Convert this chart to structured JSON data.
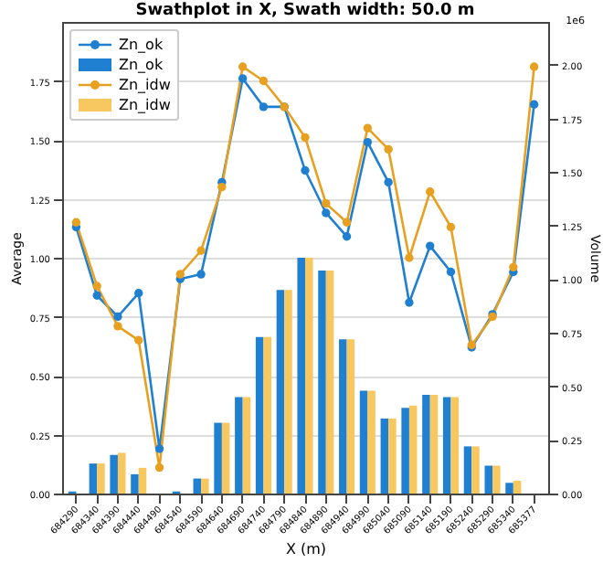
{
  "chart_data": {
    "type": "line",
    "title": "Swathplot in X, Swath width: 50.0 m",
    "xlabel": "X (m)",
    "ylabel": "Average",
    "y2label": "Volume",
    "categories": [
      "684290",
      "684340",
      "684390",
      "684440",
      "684490",
      "684540",
      "684590",
      "684640",
      "684690",
      "684740",
      "684790",
      "684840",
      "684890",
      "684940",
      "684990",
      "685040",
      "685090",
      "685140",
      "685190",
      "685240",
      "685290",
      "685340",
      "685377"
    ],
    "series": [
      {
        "name": "Zn_ok",
        "color": "#1f7fd0",
        "values": [
          1.13,
          0.84,
          0.75,
          0.85,
          0.19,
          0.91,
          0.93,
          1.32,
          1.76,
          1.64,
          1.64,
          1.37,
          1.19,
          1.09,
          1.49,
          1.32,
          0.81,
          1.05,
          0.94,
          0.62,
          0.76,
          0.94,
          1.65
        ]
      },
      {
        "name": "Zn_ok",
        "type": "bar",
        "axis": "y2",
        "color": "#1f7fd0",
        "values": [
          0.01,
          0.14,
          0.18,
          0.09,
          0,
          0.01,
          0.07,
          0.33,
          0.45,
          0.73,
          0.95,
          1.1,
          1.04,
          0.72,
          0.48,
          0.35,
          0.4,
          0.46,
          0.45,
          0.22,
          0.13,
          0.05,
          0
        ]
      },
      {
        "name": "Zn_idw",
        "color": "#e8a020",
        "values": [
          1.15,
          0.88,
          0.71,
          0.65,
          0.11,
          0.93,
          1.03,
          1.3,
          1.81,
          1.75,
          1.64,
          1.51,
          1.23,
          1.15,
          1.55,
          1.46,
          1.0,
          1.28,
          1.13,
          0.63,
          0.75,
          0.96,
          1.81
        ]
      },
      {
        "name": "Zn_idw",
        "type": "bar",
        "axis": "y2",
        "color": "#f7c860",
        "values": [
          0,
          0.14,
          0.19,
          0.12,
          0,
          0,
          0.07,
          0.33,
          0.45,
          0.73,
          0.95,
          1.1,
          1.04,
          0.72,
          0.48,
          0.35,
          0.41,
          0.46,
          0.45,
          0.22,
          0.13,
          0.06,
          0
        ]
      }
    ],
    "ylim": [
      0,
      2.0
    ],
    "yticks": [
      {
        "value": 0,
        "label": "0.00"
      },
      0.25,
      {
        "value": 0.5,
        "label": "0.50"
      },
      0.75,
      {
        "value": 1,
        "label": "1.00"
      },
      1.25,
      {
        "value": 1.5,
        "label": "1.50"
      },
      1.75
    ],
    "y2lim": [
      0,
      2.2
    ],
    "y2ticks": [
      {
        "value": 0,
        "label": "0.00"
      },
      0.25,
      {
        "value": 0.5,
        "label": "0.50"
      },
      0.75,
      {
        "value": 1,
        "label": "1.00"
      },
      1.25,
      {
        "value": 1.5,
        "label": "1.50"
      },
      1.75,
      {
        "value": 2,
        "label": "2.00"
      }
    ],
    "annotations": [
      "1e6"
    ],
    "grid": "y",
    "legend": "top left",
    "marker": "circle"
  }
}
